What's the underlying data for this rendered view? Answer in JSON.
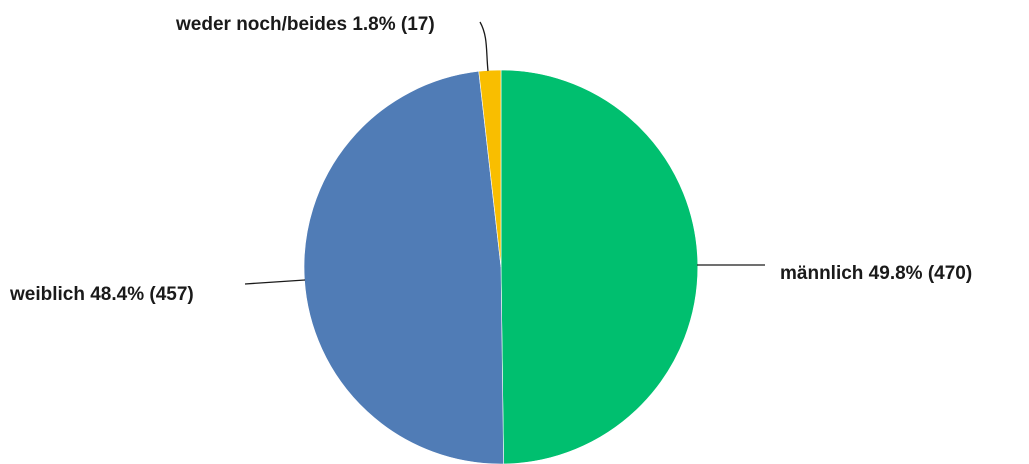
{
  "chart_data": {
    "type": "pie",
    "title": "",
    "slices": [
      {
        "label": "männlich 49.8% (470)",
        "category": "männlich",
        "value": 470,
        "percent": 49.8,
        "color": "#00BF6F"
      },
      {
        "label": "weiblich 48.4% (457)",
        "category": "weiblich",
        "value": 457,
        "percent": 48.4,
        "color": "#507CB6"
      },
      {
        "label": "weder noch/beides 1.8% (17)",
        "category": "weder noch/beides",
        "value": 17,
        "percent": 1.8,
        "color": "#F9BE00"
      }
    ],
    "legend": "none",
    "start_angle": "12 o'clock",
    "direction": "clockwise"
  }
}
